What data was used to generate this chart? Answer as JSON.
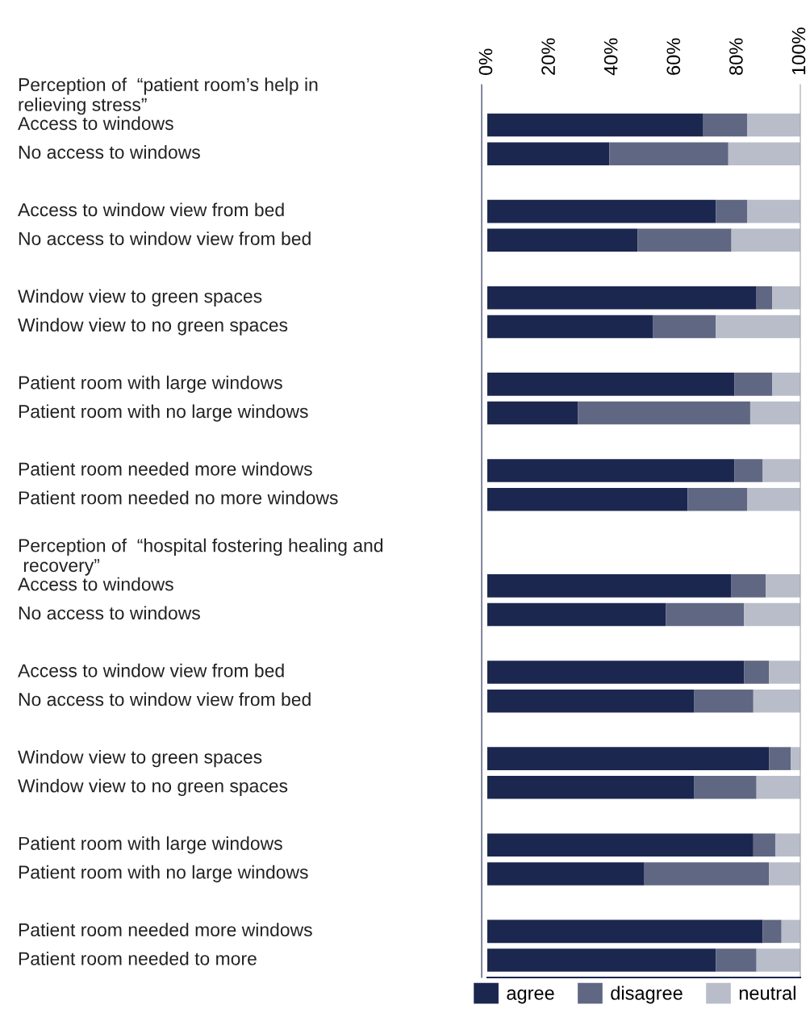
{
  "chart_data": {
    "type": "bar",
    "orientation": "horizontal",
    "stacked": true,
    "categories": [
      "Perception of  “patient room’s help in\nrelieving stress”",
      "Access to windows",
      "No access to windows",
      null,
      "Access to window view from bed",
      "No access to window view from bed",
      null,
      "Window view to green spaces",
      "Window view to no green spaces",
      null,
      "Patient room with large windows",
      "Patient room with no large windows",
      null,
      "Patient room needed more windows",
      "Patient room needed no more windows",
      null,
      "Perception of  “hospital fostering healing and\n recovery”",
      "Access to windows",
      "No access to windows",
      null,
      "Access to window view from bed",
      "No access to window view from bed",
      null,
      "Window view to green spaces",
      "Window view to no green spaces",
      null,
      "Patient room with large windows",
      "Patient room with no large windows",
      null,
      "Patient room needed more windows",
      "Patient room needed to more"
    ],
    "series": [
      {
        "name": "agree",
        "color": "#1c2750",
        "values": [
          null,
          69,
          39,
          null,
          73,
          48,
          null,
          86,
          53,
          null,
          79,
          29,
          null,
          79,
          64,
          null,
          null,
          78,
          57,
          null,
          82,
          66,
          null,
          90,
          66,
          null,
          85,
          50,
          null,
          88,
          73
        ]
      },
      {
        "name": "disagree",
        "color": "#5f6782",
        "values": [
          null,
          14,
          38,
          null,
          10,
          30,
          null,
          5,
          20,
          null,
          12,
          55,
          null,
          9,
          19,
          null,
          null,
          11,
          25,
          null,
          8,
          19,
          null,
          7,
          20,
          null,
          7,
          40,
          null,
          6,
          13
        ]
      },
      {
        "name": "neutral",
        "color": "#b9bdca",
        "values": [
          null,
          17,
          23,
          null,
          17,
          22,
          null,
          9,
          27,
          null,
          9,
          16,
          null,
          12,
          17,
          null,
          null,
          11,
          18,
          null,
          10,
          15,
          null,
          3,
          14,
          null,
          8,
          10,
          null,
          6,
          14
        ]
      }
    ],
    "xlim": [
      0,
      100
    ],
    "xticks": [
      {
        "value": 0,
        "label": "0%"
      },
      {
        "value": 20,
        "label": "20%"
      },
      {
        "value": 40,
        "label": "40%"
      },
      {
        "value": 60,
        "label": "60%"
      },
      {
        "value": 80,
        "label": "80%"
      },
      {
        "value": 100,
        "label": "100%"
      }
    ],
    "legend": "bottom"
  }
}
